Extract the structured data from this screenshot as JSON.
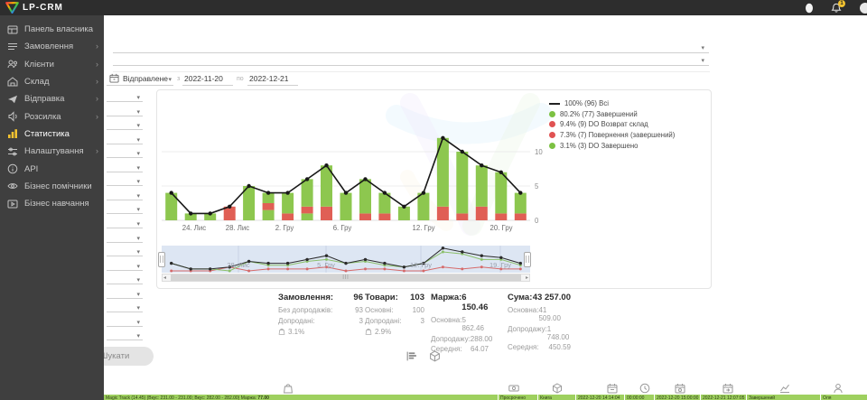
{
  "topbar": {
    "brand": "LP-CRM",
    "notification_count": "1"
  },
  "sidebar": {
    "items": [
      {
        "label": "Панель власника",
        "icon": "dashboard-icon",
        "chevron": false,
        "active": false
      },
      {
        "label": "Замовлення",
        "icon": "orders-icon",
        "chevron": true,
        "active": false
      },
      {
        "label": "Клієнти",
        "icon": "clients-icon",
        "chevron": true,
        "active": false
      },
      {
        "label": "Склад",
        "icon": "warehouse-icon",
        "chevron": true,
        "active": false
      },
      {
        "label": "Відправка",
        "icon": "shipping-icon",
        "chevron": true,
        "active": false
      },
      {
        "label": "Розсилка",
        "icon": "mailing-icon",
        "chevron": true,
        "active": false
      },
      {
        "label": "Статистика",
        "icon": "stats-icon",
        "chevron": false,
        "active": true
      },
      {
        "label": "Налаштування",
        "icon": "settings-icon",
        "chevron": true,
        "active": false
      },
      {
        "label": "API",
        "icon": "api-icon",
        "chevron": false,
        "active": false
      },
      {
        "label": "Бізнес помічники",
        "icon": "helpers-icon",
        "chevron": false,
        "active": false
      },
      {
        "label": "Бізнес навчання",
        "icon": "training-icon",
        "chevron": false,
        "active": false
      }
    ]
  },
  "filters": {
    "date_type": "Відправлене",
    "from_label": "з",
    "date_from": "2022-11-20",
    "to_label": "по",
    "date_to": "2022-12-21",
    "side_select_count": 18,
    "search_button": "Шукати"
  },
  "chart_data": {
    "type": "bar",
    "title": "",
    "ylim": [
      0,
      12.8
    ],
    "yticks": [
      0,
      5,
      10
    ],
    "grid": true,
    "legend_position": "top-right",
    "bars": [
      [
        [
          "g",
          4
        ]
      ],
      [
        [
          "g",
          1
        ]
      ],
      [
        [
          "g",
          1
        ]
      ],
      [
        [
          "r",
          2
        ]
      ],
      [
        [
          "g",
          5
        ]
      ],
      [
        [
          "g",
          1.5
        ],
        [
          "r",
          1
        ],
        [
          "g",
          1.5
        ]
      ],
      [
        [
          "r",
          1
        ],
        [
          "g",
          3
        ]
      ],
      [
        [
          "g",
          1
        ],
        [
          "r",
          1
        ],
        [
          "g",
          4
        ]
      ],
      [
        [
          "r",
          2
        ],
        [
          "g",
          6
        ]
      ],
      [
        [
          "g",
          4
        ]
      ],
      [
        [
          "r",
          1
        ],
        [
          "g",
          5
        ]
      ],
      [
        [
          "r",
          1
        ],
        [
          "g",
          3
        ]
      ],
      [
        [
          "g",
          2
        ]
      ],
      [
        [
          "g",
          4
        ]
      ],
      [
        [
          "r",
          2
        ],
        [
          "g",
          10
        ]
      ],
      [
        [
          "r",
          1
        ],
        [
          "g",
          9
        ]
      ],
      [
        [
          "r",
          2
        ],
        [
          "g",
          6
        ]
      ],
      [
        [
          "r",
          1
        ],
        [
          "g",
          6
        ]
      ],
      [
        [
          "r",
          1
        ],
        [
          "g",
          3
        ]
      ]
    ],
    "line": {
      "name": "Всі",
      "values": [
        4,
        1,
        1,
        2,
        5,
        4,
        4,
        6,
        8,
        4,
        6,
        4,
        2,
        4,
        12,
        10,
        8,
        7,
        4
      ]
    },
    "x_tick_labels": [
      {
        "label": "24. Лис",
        "f": 0.088
      },
      {
        "label": "28. Лис",
        "f": 0.206
      },
      {
        "label": "2. Гру",
        "f": 0.334
      },
      {
        "label": "6. Гру",
        "f": 0.489
      },
      {
        "label": "12. Гру",
        "f": 0.71
      },
      {
        "label": "20. Гру",
        "f": 0.921
      }
    ],
    "legend": [
      {
        "marker": "line",
        "color": "#222222",
        "text": "100% (96) Всі"
      },
      {
        "marker": "dot",
        "color": "#7cc142",
        "text": "80.2% (77) Завершений"
      },
      {
        "marker": "dot",
        "color": "#e05252",
        "text": "9.4%  (9) DO Возврат склад"
      },
      {
        "marker": "dot",
        "color": "#e05252",
        "text": "7.3%  (7) Повернення (завершений)"
      },
      {
        "marker": "dot",
        "color": "#7cc142",
        "text": "3.1%  (3) DO Завершено"
      }
    ],
    "navigator": {
      "green_values": [
        4,
        1,
        1,
        0,
        5,
        3,
        3,
        5,
        6,
        4,
        5,
        3,
        2,
        4,
        10,
        9,
        6,
        6,
        3
      ],
      "red_values": [
        0,
        0,
        0,
        2,
        0,
        1,
        1,
        1,
        2,
        0,
        1,
        1,
        0,
        0,
        2,
        1,
        2,
        1,
        1
      ],
      "labels": [
        {
          "label": "28. Лис",
          "f": 0.208
        },
        {
          "label": "5. Гру",
          "f": 0.446
        },
        {
          "label": "12. Гру",
          "f": 0.704
        },
        {
          "label": "19. Гру",
          "f": 0.919
        }
      ]
    }
  },
  "stats": {
    "columns": [
      {
        "title": "Замовлення:",
        "value": "96",
        "rows": [
          {
            "label": "Без допродажів:",
            "value": "93"
          },
          {
            "label": "Допродані:",
            "value": "3"
          }
        ],
        "badge": "3.1%"
      },
      {
        "title": "Товари:",
        "value": "103",
        "rows": [
          {
            "label": "Основні:",
            "value": "100"
          },
          {
            "label": "Допродані:",
            "value": "3"
          }
        ],
        "badge": "2.9%"
      },
      {
        "title": "Маржа:",
        "value": "6 150.46",
        "rows": [
          {
            "label": "Основна:",
            "value": "5 862.46"
          },
          {
            "label": "Допродажу:",
            "value": "288.00"
          },
          {
            "label": "Середня:",
            "value": "64.07"
          }
        ],
        "badge": ""
      },
      {
        "title": "Сума:",
        "value": "43 257.00",
        "rows": [
          {
            "label": "Основна:",
            "value": "41 509.00"
          },
          {
            "label": "Допродажу:",
            "value": "1 748.00"
          },
          {
            "label": "Середня:",
            "value": "450.59"
          }
        ],
        "badge": ""
      }
    ]
  },
  "table": {
    "header_icons": [
      "bag-icon",
      "banknote-icon",
      "package-icon",
      "calendar-icon",
      "clock-icon",
      "calendar-check-icon",
      "calendar-arrow-icon",
      "area-chart-icon",
      "person-icon"
    ],
    "row": {
      "order_text": "Magic Track (14.45) (Вкус: 231.00 - 231.00; Вкус: 282.00 - 282.00)  Маржа:",
      "margin_value": "77.00",
      "cells": [
        "Просрочено",
        "Книга",
        "2022-12-20 14:14:04",
        "00:00:00",
        "2022-12-20 15:00:00",
        "2022-12-21 12:07:05",
        "Завершений",
        "Оля"
      ]
    }
  },
  "colors": {
    "bar_green": "#8dc74f",
    "bar_red": "#e05f55",
    "line": "#181818",
    "legend_green": "#7cc142",
    "legend_red": "#e05252",
    "accent_yellow": "#f2c230",
    "nav_band": "#dde6f3",
    "table_green": "#9ed05f"
  }
}
